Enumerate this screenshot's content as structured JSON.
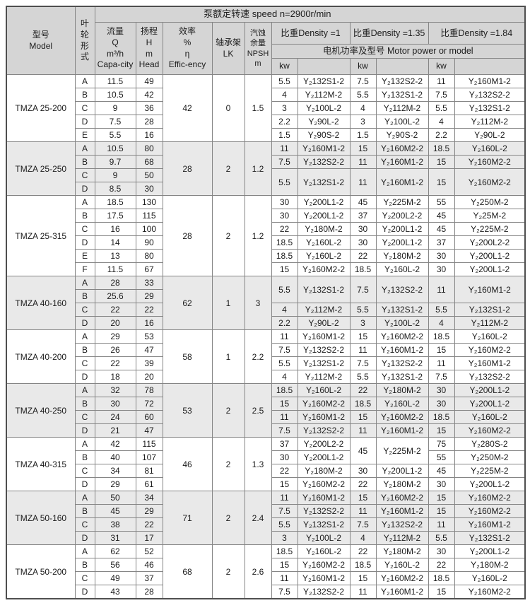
{
  "table": {
    "headers": {
      "speed": "泵额定转速  speed n=2900r/min",
      "model": "型号\nModel",
      "impeller": "叶\n轮\n形\n式",
      "capacity": "流量\nQ\nm³/h\nCapa-city",
      "head": "扬程\nH\nm\nHead",
      "efficiency": "效率\n%\nη\nEffic-ency",
      "bearing": "轴承架\nLK",
      "npsh": "汽蚀\n余量\nNPSH\nm",
      "density1": "比重Density =1",
      "density2": "比重Density =1.35",
      "density3": "比重Density =1.84",
      "motor": "电机功率及型号  Motor power or model",
      "kw": "kw"
    },
    "blocks": [
      {
        "model": "TMZA 25-200",
        "efficiency": "42",
        "lk": "0",
        "npsh": "1.5",
        "rows": [
          {
            "form": "A",
            "q": "11.5",
            "h": "49",
            "motors": [
              {
                "kw": "5.5",
                "model": "Y₂132S1-2"
              },
              {
                "kw": "7.5",
                "model": "Y₂132S2-2"
              },
              {
                "kw": "11",
                "model": "Y₂160M1-2"
              }
            ]
          },
          {
            "form": "B",
            "q": "10.5",
            "h": "42",
            "motors": [
              {
                "kw": "4",
                "model": "Y₂112M-2"
              },
              {
                "kw": "5.5",
                "model": "Y₂132S1-2"
              },
              {
                "kw": "7.5",
                "model": "Y₂132S2-2"
              }
            ]
          },
          {
            "form": "C",
            "q": "9",
            "h": "36",
            "motors": [
              {
                "kw": "3",
                "model": "Y₂100L-2"
              },
              {
                "kw": "4",
                "model": "Y₂112M-2"
              },
              {
                "kw": "5.5",
                "model": "Y₂132S1-2"
              }
            ]
          },
          {
            "form": "D",
            "q": "7.5",
            "h": "28",
            "motors": [
              {
                "kw": "2.2",
                "model": "Y₂90L-2"
              },
              {
                "kw": "3",
                "model": "Y₂100L-2"
              },
              {
                "kw": "4",
                "model": "Y₂112M-2"
              }
            ]
          },
          {
            "form": "E",
            "q": "5.5",
            "h": "16",
            "motors": [
              {
                "kw": "1.5",
                "model": "Y₂90S-2"
              },
              {
                "kw": "1.5",
                "model": "Y₂90S-2"
              },
              {
                "kw": "2.2",
                "model": "Y₂90L-2"
              }
            ]
          }
        ]
      },
      {
        "model": "TMZA 25-250",
        "efficiency": "28",
        "lk": "2",
        "npsh": "1.2",
        "rows": [
          {
            "form": "A",
            "q": "10.5",
            "h": "80",
            "motors": [
              {
                "kw": "11",
                "model": "Y₂160M1-2"
              },
              {
                "kw": "15",
                "model": "Y₂160M2-2"
              },
              {
                "kw": "18.5",
                "model": "Y₂160L-2"
              }
            ]
          },
          {
            "form": "B",
            "q": "9.7",
            "h": "68",
            "motors": [
              {
                "kw": "7.5",
                "model": "Y₂132S2-2"
              },
              {
                "kw": "11",
                "model": "Y₂160M1-2"
              },
              {
                "kw": "15",
                "model": "Y₂160M2-2"
              }
            ]
          },
          {
            "form": "C",
            "q": "9",
            "h": "50",
            "motors": [
              {
                "kw": "5.5",
                "model": "Y₂132S1-2",
                "span": 2
              },
              {
                "kw": "11",
                "model": "Y₂160M1-2",
                "span": 2
              },
              {
                "kw": "15",
                "model": "Y₂160M2-2",
                "span": 2
              }
            ]
          },
          {
            "form": "D",
            "q": "8.5",
            "h": "30",
            "motors": [
              null,
              null,
              null
            ]
          }
        ]
      },
      {
        "model": "TMZA 25-315",
        "efficiency": "28",
        "lk": "2",
        "npsh": "1.2",
        "rows": [
          {
            "form": "A",
            "q": "18.5",
            "h": "130",
            "motors": [
              {
                "kw": "30",
                "model": "Y₂200L1-2"
              },
              {
                "kw": "45",
                "model": "Y₂225M-2"
              },
              {
                "kw": "55",
                "model": "Y₂250M-2"
              }
            ]
          },
          {
            "form": "B",
            "q": "17.5",
            "h": "115",
            "motors": [
              {
                "kw": "30",
                "model": "Y₂200L1-2"
              },
              {
                "kw": "37",
                "model": "Y₂200L2-2"
              },
              {
                "kw": "45",
                "model": "Y₂25M-2"
              }
            ]
          },
          {
            "form": "C",
            "q": "16",
            "h": "100",
            "motors": [
              {
                "kw": "22",
                "model": "Y₂180M-2"
              },
              {
                "kw": "30",
                "model": "Y₂200L1-2"
              },
              {
                "kw": "45",
                "model": "Y₂225M-2"
              }
            ]
          },
          {
            "form": "D",
            "q": "14",
            "h": "90",
            "motors": [
              {
                "kw": "18.5",
                "model": "Y₂160L-2"
              },
              {
                "kw": "30",
                "model": "Y₂200L1-2"
              },
              {
                "kw": "37",
                "model": "Y₂200L2-2"
              }
            ]
          },
          {
            "form": "E",
            "q": "13",
            "h": "80",
            "motors": [
              {
                "kw": "18.5",
                "model": "Y₂160L-2"
              },
              {
                "kw": "22",
                "model": "Y₂180M-2"
              },
              {
                "kw": "30",
                "model": "Y₂200L1-2"
              }
            ]
          },
          {
            "form": "F",
            "q": "11.5",
            "h": "67",
            "motors": [
              {
                "kw": "15",
                "model": "Y₂160M2-2"
              },
              {
                "kw": "18.5",
                "model": "Y₂160L-2"
              },
              {
                "kw": "30",
                "model": "Y₂200L1-2"
              }
            ]
          }
        ]
      },
      {
        "model": "TMZA 40-160",
        "efficiency": "62",
        "lk": "1",
        "npsh": "3",
        "rows": [
          {
            "form": "A",
            "q": "28",
            "h": "33",
            "motors": [
              {
                "kw": "5.5",
                "model": "Y₂132S1-2",
                "span": 2
              },
              {
                "kw": "7.5",
                "model": "Y₂132S2-2",
                "span": 2
              },
              {
                "kw": "11",
                "model": "Y₂160M1-2",
                "span": 2
              }
            ]
          },
          {
            "form": "B",
            "q": "25.6",
            "h": "29",
            "motors": [
              null,
              null,
              null
            ]
          },
          {
            "form": "C",
            "q": "22",
            "h": "22",
            "motors": [
              {
                "kw": "4",
                "model": "Y₂112M-2"
              },
              {
                "kw": "5.5",
                "model": "Y₂132S1-2"
              },
              {
                "kw": "5.5",
                "model": "Y₂132S1-2"
              }
            ]
          },
          {
            "form": "D",
            "q": "20",
            "h": "16",
            "motors": [
              {
                "kw": "2.2",
                "model": "Y₂90L-2"
              },
              {
                "kw": "3",
                "model": "Y₂100L-2"
              },
              {
                "kw": "4",
                "model": "Y₂112M-2"
              }
            ]
          }
        ]
      },
      {
        "model": "TMZA 40-200",
        "efficiency": "58",
        "lk": "1",
        "npsh": "2.2",
        "rows": [
          {
            "form": "A",
            "q": "29",
            "h": "53",
            "motors": [
              {
                "kw": "11",
                "model": "Y₂160M1-2"
              },
              {
                "kw": "15",
                "model": "Y₂160M2-2"
              },
              {
                "kw": "18.5",
                "model": "Y₂160L-2"
              }
            ]
          },
          {
            "form": "B",
            "q": "26",
            "h": "47",
            "motors": [
              {
                "kw": "7.5",
                "model": "Y₂132S2-2"
              },
              {
                "kw": "11",
                "model": "Y₂160M1-2"
              },
              {
                "kw": "15",
                "model": "Y₂160M2-2"
              }
            ]
          },
          {
            "form": "C",
            "q": "22",
            "h": "39",
            "motors": [
              {
                "kw": "5.5",
                "model": "Y₂132S1-2"
              },
              {
                "kw": "7.5",
                "model": "Y₂132S2-2"
              },
              {
                "kw": "11",
                "model": "Y₂160M1-2"
              }
            ]
          },
          {
            "form": "D",
            "q": "18",
            "h": "20",
            "motors": [
              {
                "kw": "4",
                "model": "Y₂112M-2"
              },
              {
                "kw": "5.5",
                "model": "Y₂132S1-2"
              },
              {
                "kw": "7.5",
                "model": "Y₂132S2-2"
              }
            ]
          }
        ]
      },
      {
        "model": "TMZA 40-250",
        "efficiency": "53",
        "lk": "2",
        "npsh": "2.5",
        "rows": [
          {
            "form": "A",
            "q": "32",
            "h": "78",
            "motors": [
              {
                "kw": "18.5",
                "model": "Y₂160L-2"
              },
              {
                "kw": "22",
                "model": "Y₂180M-2"
              },
              {
                "kw": "30",
                "model": "Y₂200L1-2"
              }
            ]
          },
          {
            "form": "B",
            "q": "30",
            "h": "72",
            "motors": [
              {
                "kw": "15",
                "model": "Y₂160M2-2"
              },
              {
                "kw": "18.5",
                "model": "Y₂160L-2"
              },
              {
                "kw": "30",
                "model": "Y₂200L1-2"
              }
            ]
          },
          {
            "form": "C",
            "q": "24",
            "h": "60",
            "motors": [
              {
                "kw": "11",
                "model": "Y₂160M1-2"
              },
              {
                "kw": "15",
                "model": "Y₂160M2-2"
              },
              {
                "kw": "18.5",
                "model": "Y₂160L-2"
              }
            ]
          },
          {
            "form": "D",
            "q": "21",
            "h": "47",
            "motors": [
              {
                "kw": "7.5",
                "model": "Y₂132S2-2"
              },
              {
                "kw": "11",
                "model": "Y₂160M1-2"
              },
              {
                "kw": "15",
                "model": "Y₂160M2-2"
              }
            ]
          }
        ]
      },
      {
        "model": "TMZA 40-315",
        "efficiency": "46",
        "lk": "2",
        "npsh": "1.3",
        "rows": [
          {
            "form": "A",
            "q": "42",
            "h": "115",
            "motors": [
              {
                "kw": "37",
                "model": "Y₂200L2-2"
              },
              {
                "kw": "45",
                "model": "Y₂225M-2",
                "span": 2
              },
              {
                "kw": "75",
                "model": "Y₂280S-2"
              }
            ]
          },
          {
            "form": "B",
            "q": "40",
            "h": "107",
            "motors": [
              {
                "kw": "30",
                "model": "Y₂200L1-2"
              },
              null,
              {
                "kw": "55",
                "model": "Y₂250M-2"
              }
            ]
          },
          {
            "form": "C",
            "q": "34",
            "h": "81",
            "motors": [
              {
                "kw": "22",
                "model": "Y₂180M-2"
              },
              {
                "kw": "30",
                "model": "Y₂200L1-2"
              },
              {
                "kw": "45",
                "model": "Y₂225M-2"
              }
            ]
          },
          {
            "form": "D",
            "q": "29",
            "h": "61",
            "motors": [
              {
                "kw": "15",
                "model": "Y₂160M2-2"
              },
              {
                "kw": "22",
                "model": "Y₂180M-2"
              },
              {
                "kw": "30",
                "model": "Y₂200L1-2"
              }
            ]
          }
        ]
      },
      {
        "model": "TMZA 50-160",
        "efficiency": "71",
        "lk": "2",
        "npsh": "2.4",
        "rows": [
          {
            "form": "A",
            "q": "50",
            "h": "34",
            "motors": [
              {
                "kw": "11",
                "model": "Y₂160M1-2"
              },
              {
                "kw": "15",
                "model": "Y₂160M2-2"
              },
              {
                "kw": "15",
                "model": "Y₂160M2-2"
              }
            ]
          },
          {
            "form": "B",
            "q": "45",
            "h": "29",
            "motors": [
              {
                "kw": "7.5",
                "model": "Y₂132S2-2"
              },
              {
                "kw": "11",
                "model": "Y₂160M1-2"
              },
              {
                "kw": "15",
                "model": "Y₂160M2-2"
              }
            ]
          },
          {
            "form": "C",
            "q": "38",
            "h": "22",
            "motors": [
              {
                "kw": "5.5",
                "model": "Y₂132S1-2"
              },
              {
                "kw": "7.5",
                "model": "Y₂132S2-2"
              },
              {
                "kw": "11",
                "model": "Y₂160M1-2"
              }
            ]
          },
          {
            "form": "D",
            "q": "31",
            "h": "17",
            "motors": [
              {
                "kw": "3",
                "model": "Y₂100L-2"
              },
              {
                "kw": "4",
                "model": "Y₂112M-2"
              },
              {
                "kw": "5.5",
                "model": "Y₂132S1-2"
              }
            ]
          }
        ]
      },
      {
        "model": "TMZA 50-200",
        "efficiency": "68",
        "lk": "2",
        "npsh": "2.6",
        "rows": [
          {
            "form": "A",
            "q": "62",
            "h": "52",
            "motors": [
              {
                "kw": "18.5",
                "model": "Y₂160L-2"
              },
              {
                "kw": "22",
                "model": "Y₂180M-2"
              },
              {
                "kw": "30",
                "model": "Y₂200L1-2"
              }
            ]
          },
          {
            "form": "B",
            "q": "56",
            "h": "46",
            "motors": [
              {
                "kw": "15",
                "model": "Y₂160M2-2"
              },
              {
                "kw": "18.5",
                "model": "Y₂160L-2"
              },
              {
                "kw": "22",
                "model": "Y₂180M-2"
              }
            ]
          },
          {
            "form": "C",
            "q": "49",
            "h": "37",
            "motors": [
              {
                "kw": "11",
                "model": "Y₂160M1-2"
              },
              {
                "kw": "15",
                "model": "Y₂160M2-2"
              },
              {
                "kw": "18.5",
                "model": "Y₂160L-2"
              }
            ]
          },
          {
            "form": "D",
            "q": "43",
            "h": "28",
            "motors": [
              {
                "kw": "7.5",
                "model": "Y₂132S2-2"
              },
              {
                "kw": "11",
                "model": "Y₂160M1-2"
              },
              {
                "kw": "15",
                "model": "Y₂160M2-2"
              }
            ]
          }
        ]
      }
    ]
  }
}
